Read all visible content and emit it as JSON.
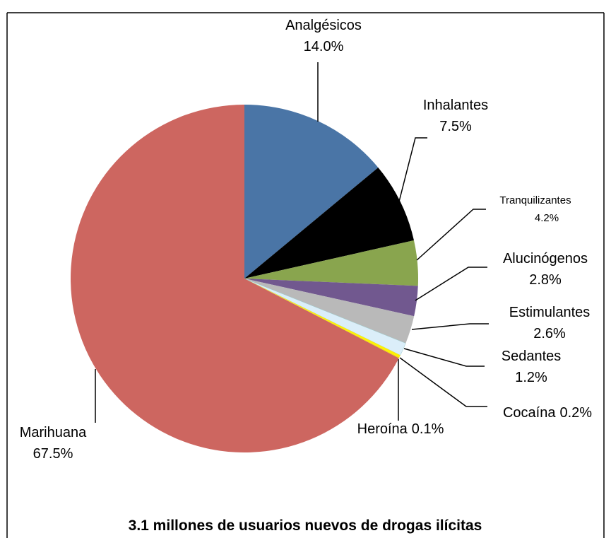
{
  "chart_data": {
    "type": "pie",
    "title": "3.1 millones de usuarios nuevos de drogas ilícitas",
    "categories": [
      "Analgésicos",
      "Inhalantes",
      "Tranquilizantes",
      "Alucinógenos",
      "Estimulantes",
      "Sedantes",
      "Cocaína",
      "Heroína",
      "Marihuana"
    ],
    "values": [
      14.0,
      7.5,
      4.2,
      2.8,
      2.6,
      1.2,
      0.2,
      0.1,
      67.5
    ],
    "value_labels": [
      "14.0%",
      "7.5%",
      "4.2%",
      "2.8%",
      "2.6%",
      "1.2%",
      "0.2%",
      "0.1%",
      "67.5%"
    ],
    "colors": [
      "#4a75a6",
      "#000000",
      "#89a54e",
      "#71588f",
      "#b9b9b9",
      "#dbeef9",
      "#fff200",
      "#f5e400",
      "#cd6660"
    ]
  }
}
